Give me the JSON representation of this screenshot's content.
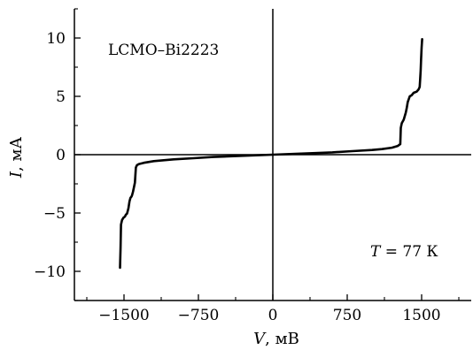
{
  "chart_data": {
    "type": "line",
    "xlabel_var": "V",
    "xlabel_unit": ", мВ",
    "ylabel_var": "I",
    "ylabel_unit": ", мА",
    "xlim": [
      -2000,
      2000
    ],
    "ylim": [
      -12.5,
      12.5
    ],
    "x_ticks": [
      -1500,
      -750,
      0,
      750,
      1500
    ],
    "x_tick_labels": [
      "−1500",
      "−750",
      "0",
      "750",
      "1500"
    ],
    "y_ticks": [
      -10,
      -5,
      0,
      5,
      10
    ],
    "y_tick_labels": [
      "−10",
      "−5",
      "0",
      "5",
      "10"
    ],
    "grid": false,
    "annotations": {
      "sample": "LCMO–Bi2223",
      "temp_var": "T",
      "temp_value": " = 77 К"
    },
    "series": [
      {
        "x": [
          -1540,
          -1535,
          -1530,
          -1520,
          -1505,
          -1490,
          -1482,
          -1470,
          -1455,
          -1445,
          -1435,
          -1425,
          -1420,
          -1410,
          -1400,
          -1390,
          -1380,
          -1370,
          -1350,
          -1300,
          -1200,
          -1000,
          -800,
          -600,
          -400,
          -200,
          0,
          200,
          400,
          600,
          800,
          1000,
          1100,
          1200,
          1260,
          1285,
          1290,
          1300,
          1320,
          1340,
          1350,
          1360,
          1380,
          1400,
          1420,
          1450,
          1470,
          1480,
          1485,
          1490,
          1495,
          1500,
          1505
        ],
        "y": [
          -9.7,
          -8.0,
          -6.0,
          -5.6,
          -5.4,
          -5.3,
          -5.15,
          -5.05,
          -4.6,
          -4.0,
          -3.7,
          -3.6,
          -3.5,
          -3.2,
          -2.8,
          -2.4,
          -1.1,
          -0.9,
          -0.8,
          -0.7,
          -0.55,
          -0.4,
          -0.3,
          -0.2,
          -0.13,
          -0.06,
          0.0,
          0.06,
          0.13,
          0.2,
          0.3,
          0.4,
          0.48,
          0.6,
          0.75,
          0.9,
          2.3,
          2.7,
          3.0,
          3.6,
          4.0,
          4.5,
          5.0,
          5.1,
          5.3,
          5.4,
          5.6,
          5.8,
          6.4,
          7.2,
          8.2,
          9.2,
          9.9
        ]
      }
    ]
  }
}
